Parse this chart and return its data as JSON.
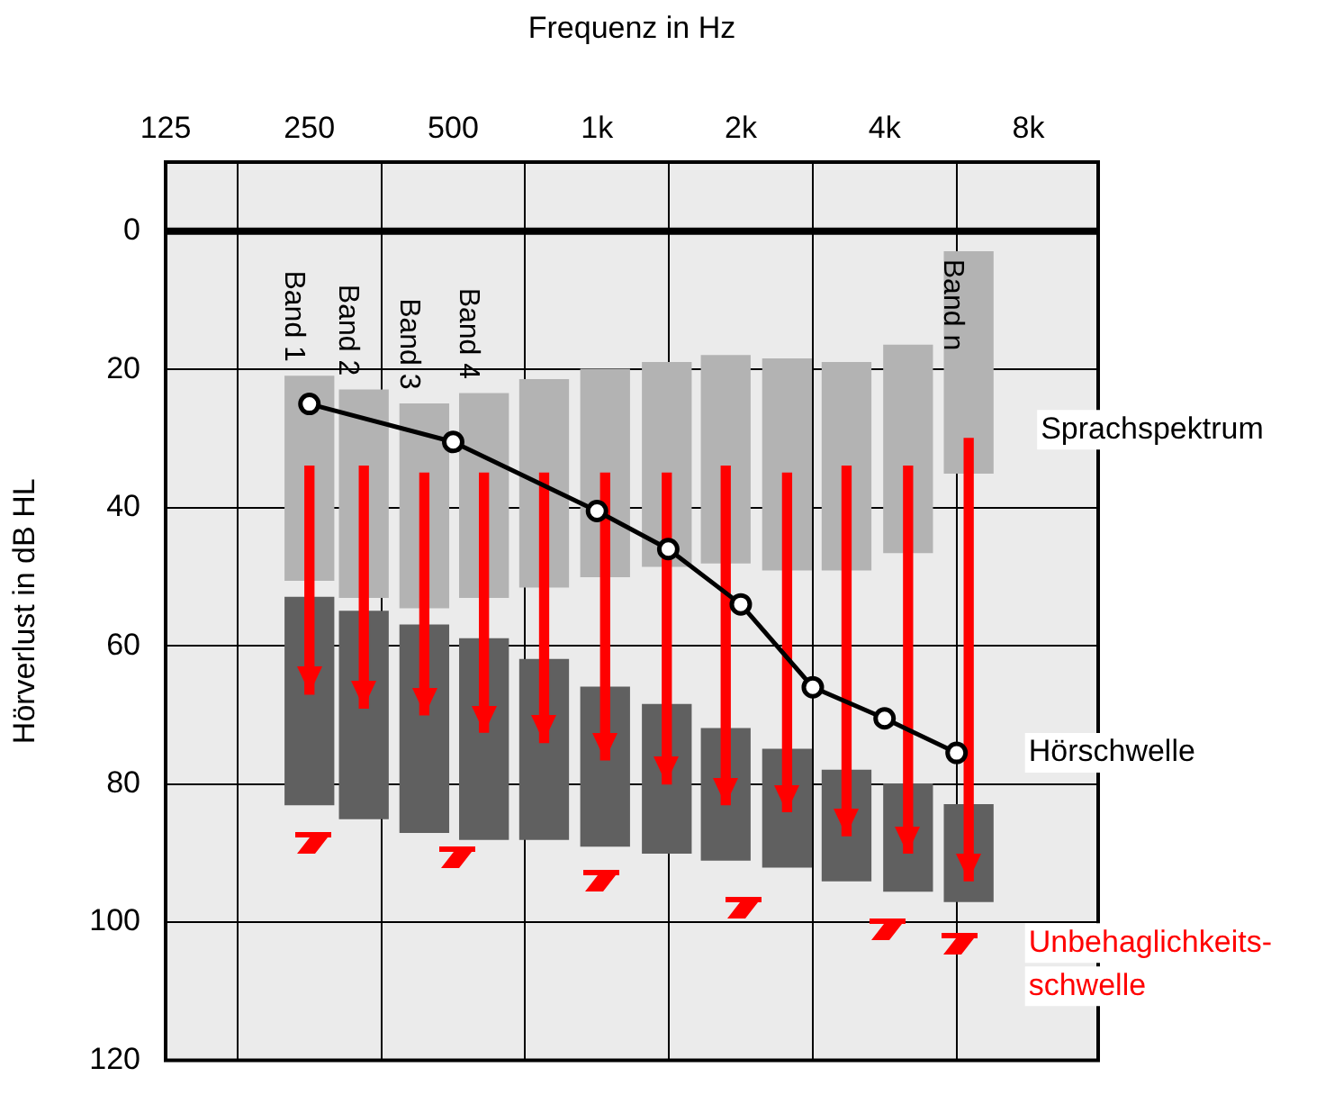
{
  "chart_data": {
    "type": "bar",
    "xlabel": "Frequenz in Hz",
    "ylabel": "Hörverlust in dB HL",
    "log": "x",
    "xlim": [
      125,
      11200
    ],
    "xticks": [
      125,
      250,
      500,
      {
        "value": 1000,
        "label": "1k"
      },
      {
        "value": 2000,
        "label": "2k"
      },
      {
        "value": 4000,
        "label": "4k"
      },
      {
        "value": 8000,
        "label": "8k"
      }
    ],
    "ylim": [
      120,
      -10
    ],
    "yticks": [
      0,
      20,
      40,
      60,
      80,
      100,
      120
    ],
    "grid": true,
    "ref_lines": [
      {
        "axis": "y",
        "value": 0,
        "color": "#000000"
      }
    ],
    "annotations": [
      {
        "text": "Band 1",
        "x": 250,
        "y": 21
      },
      {
        "text": "Band 2",
        "x": 325,
        "y": 23
      },
      {
        "text": "Band 3",
        "x": 435,
        "y": 25
      },
      {
        "text": "Band 4",
        "x": 580,
        "y": 23.5
      },
      {
        "text": "Band n",
        "x": 6000,
        "y": 3
      }
    ],
    "series": [
      {
        "name": "Sprachspektrum",
        "color": "#b3b3b3",
        "x": [
          250,
          325,
          435,
          580,
          775,
          1040,
          1400,
          1860,
          2500,
          3330,
          4480,
          6000
        ],
        "base": [
          21,
          23,
          25,
          23.5,
          21.5,
          20,
          19,
          18,
          18.5,
          19,
          16.5,
          3
        ],
        "values": [
          29.5,
          30,
          29.5,
          29.5,
          30,
          30,
          29.5,
          30,
          30.5,
          30,
          30,
          32
        ]
      },
      {
        "color": "#606060",
        "x": [
          250,
          325,
          435,
          580,
          775,
          1040,
          1400,
          1860,
          2500,
          3330,
          4480,
          6000
        ],
        "base": [
          53,
          55,
          57,
          59,
          62,
          66,
          68.5,
          72,
          75,
          78,
          80,
          83
        ],
        "values": [
          30,
          30,
          30,
          29,
          26,
          23,
          21.5,
          19,
          17,
          16,
          15.5,
          14
        ]
      },
      {
        "color": "#ff0000",
        "marker": "triangle",
        "x": [
          250,
          325,
          435,
          580,
          775,
          1040,
          1400,
          1860,
          2500,
          3330,
          4480,
          6000
        ],
        "base": [
          34,
          34,
          35,
          35,
          35,
          35,
          35,
          34,
          35,
          34,
          34,
          30
        ],
        "values": [
          33,
          35,
          35,
          37.5,
          39,
          41.5,
          45,
          49,
          49,
          53.5,
          56,
          64
        ]
      },
      {
        "type": "line",
        "name": "Hörschwelle",
        "color": "#000000",
        "marker": "circle",
        "x": [
          250,
          500,
          1000,
          1410,
          2000,
          2830,
          4000,
          5660
        ],
        "values": [
          25,
          30.5,
          40.5,
          46,
          54,
          66,
          70.5,
          75.5
        ]
      },
      {
        "type": "scatter",
        "name": "Unbehaglichkeits-schwelle",
        "color": "#ff0000",
        "x": [
          250,
          500,
          1000,
          2000,
          4000,
          5660
        ],
        "values": [
          88.5,
          90.5,
          94,
          98,
          101,
          103
        ]
      }
    ]
  }
}
